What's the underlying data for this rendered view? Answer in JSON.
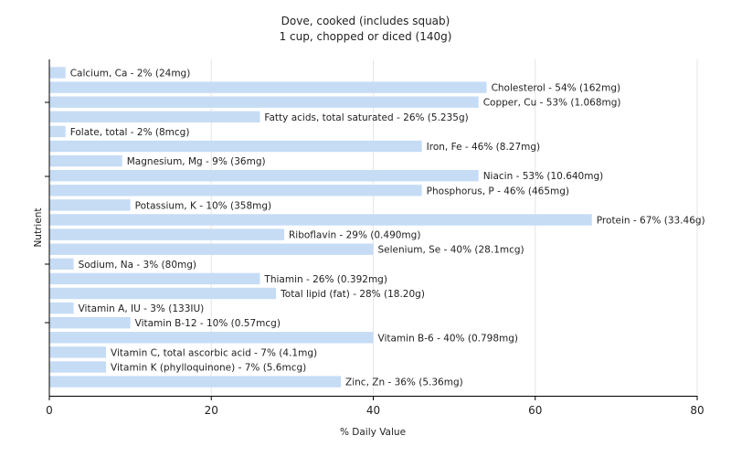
{
  "chart_data": {
    "type": "bar",
    "orientation": "horizontal",
    "title": "Dove, cooked (includes squab)",
    "subtitle": "1 cup, chopped or diced (140g)",
    "xlabel": "% Daily Value",
    "ylabel": "Nutrient",
    "xlim": [
      0,
      80
    ],
    "xticks": [
      "0",
      "20",
      "40",
      "60",
      "80"
    ],
    "grid": true,
    "bar_color": "#c6dcf5",
    "categories": [
      "Calcium, Ca",
      "Cholesterol",
      "Copper, Cu",
      "Fatty acids, total saturated",
      "Folate, total",
      "Iron, Fe",
      "Magnesium, Mg",
      "Niacin",
      "Phosphorus, P",
      "Potassium, K",
      "Protein",
      "Riboflavin",
      "Selenium, Se",
      "Sodium, Na",
      "Thiamin",
      "Total lipid (fat)",
      "Vitamin A, IU",
      "Vitamin B-12",
      "Vitamin B-6",
      "Vitamin C, total ascorbic acid",
      "Vitamin K (phylloquinone)",
      "Zinc, Zn"
    ],
    "values": [
      2,
      54,
      53,
      26,
      2,
      46,
      9,
      53,
      46,
      10,
      67,
      29,
      40,
      3,
      26,
      28,
      3,
      10,
      40,
      7,
      7,
      36
    ],
    "labels": [
      "Calcium, Ca - 2% (24mg)",
      "Cholesterol - 54% (162mg)",
      "Copper, Cu - 53% (1.068mg)",
      "Fatty acids, total saturated - 26% (5.235g)",
      "Folate, total - 2% (8mcg)",
      "Iron, Fe - 46% (8.27mg)",
      "Magnesium, Mg - 9% (36mg)",
      "Niacin - 53% (10.640mg)",
      "Phosphorus, P - 46% (465mg)",
      "Potassium, K - 10% (358mg)",
      "Protein - 67% (33.46g)",
      "Riboflavin - 29% (0.490mg)",
      "Selenium, Se - 40% (28.1mcg)",
      "Sodium, Na - 3% (80mg)",
      "Thiamin - 26% (0.392mg)",
      "Total lipid (fat) - 28% (18.20g)",
      "Vitamin A, IU - 3% (133IU)",
      "Vitamin B-12 - 10% (0.57mcg)",
      "Vitamin B-6 - 40% (0.798mg)",
      "Vitamin C, total ascorbic acid - 7% (4.1mg)",
      "Vitamin K (phylloquinone) - 7% (5.6mcg)",
      "Zinc, Zn - 36% (5.36mg)"
    ]
  }
}
